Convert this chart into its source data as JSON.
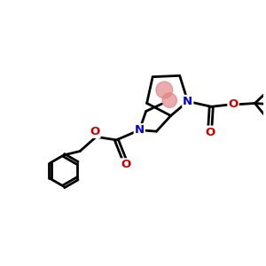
{
  "background_color": "#ffffff",
  "bond_color": "#000000",
  "N_color": "#0000cc",
  "O_color": "#cc0000",
  "highlight_color": "#e08080",
  "highlight_alpha": 0.65,
  "line_width": 2.0,
  "fig_size": [
    3.0,
    3.0
  ],
  "dpi": 100,
  "xlim": [
    0,
    10
  ],
  "ylim": [
    0,
    10
  ]
}
